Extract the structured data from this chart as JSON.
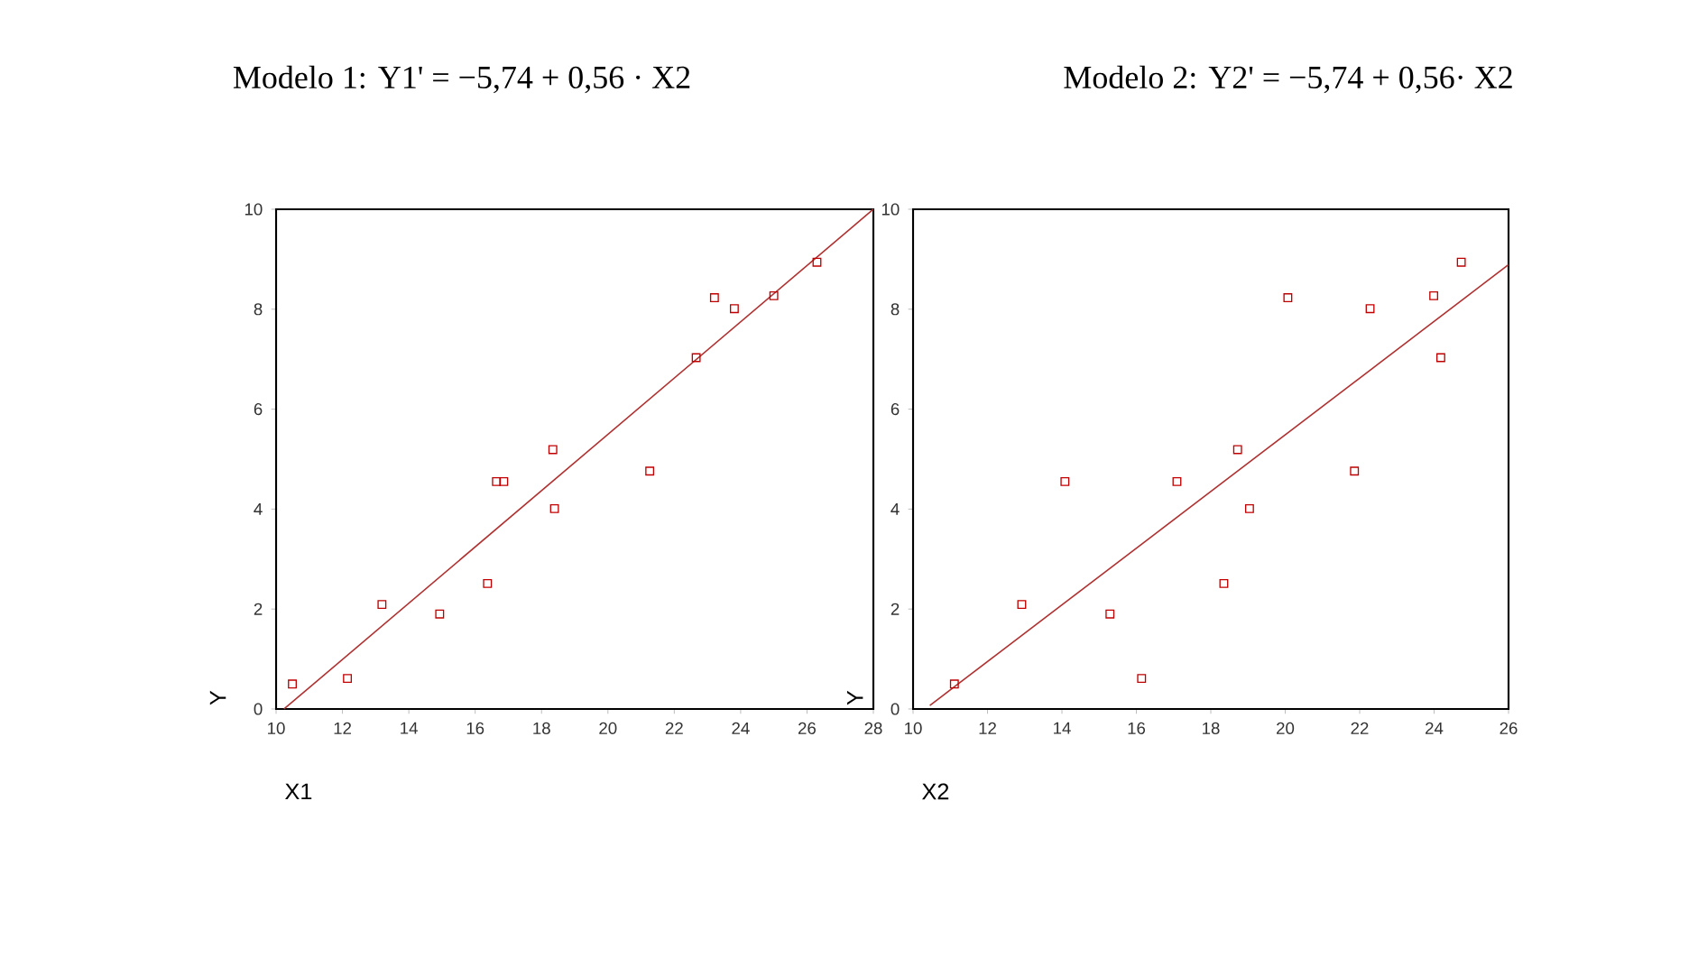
{
  "chart_data": [
    {
      "type": "scatter",
      "title": "Modelo 1: Y1' = −5,74 + 0,56 · X2",
      "xlabel": "X1",
      "ylabel": "Y",
      "xlim": [
        10,
        28
      ],
      "ylim": [
        0,
        10
      ],
      "xticks": [
        10,
        12,
        14,
        16,
        18,
        20,
        22,
        24,
        26,
        28
      ],
      "yticks": [
        0,
        2,
        4,
        6,
        8,
        10
      ],
      "marker": "square",
      "series": [
        {
          "type": "scatter",
          "color": "#c00000",
          "x": [
            10.49,
            12.15,
            13.19,
            14.93,
            16.37,
            16.64,
            16.86,
            18.34,
            18.39,
            21.26,
            22.66,
            23.21,
            23.81,
            25.0,
            26.3
          ],
          "values": [
            0.5,
            0.61,
            2.09,
            1.9,
            2.51,
            4.55,
            4.55,
            5.19,
            4.01,
            4.76,
            7.03,
            8.23,
            8.01,
            8.27,
            8.94
          ]
        },
        {
          "type": "line",
          "marker": "none",
          "color": "#b03030",
          "x": [
            10.24,
            28
          ],
          "values": [
            0,
            10
          ]
        }
      ]
    },
    {
      "type": "scatter",
      "title": "Modelo 2: Y2' = −5,74 + 0,56· X2",
      "xlabel": "X2",
      "ylabel": "Y",
      "xlim": [
        10,
        26
      ],
      "ylim": [
        0,
        10
      ],
      "xticks": [
        10,
        12,
        14,
        16,
        18,
        20,
        22,
        24,
        26
      ],
      "yticks": [
        0,
        2,
        4,
        6,
        8,
        10
      ],
      "marker": "square",
      "series": [
        {
          "type": "scatter",
          "color": "#c00000",
          "x": [
            11.11,
            12.92,
            14.08,
            15.29,
            16.14,
            17.09,
            18.35,
            18.72,
            19.04,
            20.07,
            21.86,
            22.28,
            23.99,
            24.18,
            24.73
          ],
          "values": [
            0.5,
            2.09,
            4.55,
            1.9,
            0.61,
            4.55,
            2.51,
            5.19,
            4.01,
            8.23,
            4.76,
            8.01,
            8.27,
            7.03,
            8.94
          ]
        },
        {
          "type": "line",
          "marker": "none",
          "color": "#b03030",
          "x": [
            10.45,
            26
          ],
          "values": [
            0.07,
            8.89
          ]
        }
      ]
    }
  ]
}
